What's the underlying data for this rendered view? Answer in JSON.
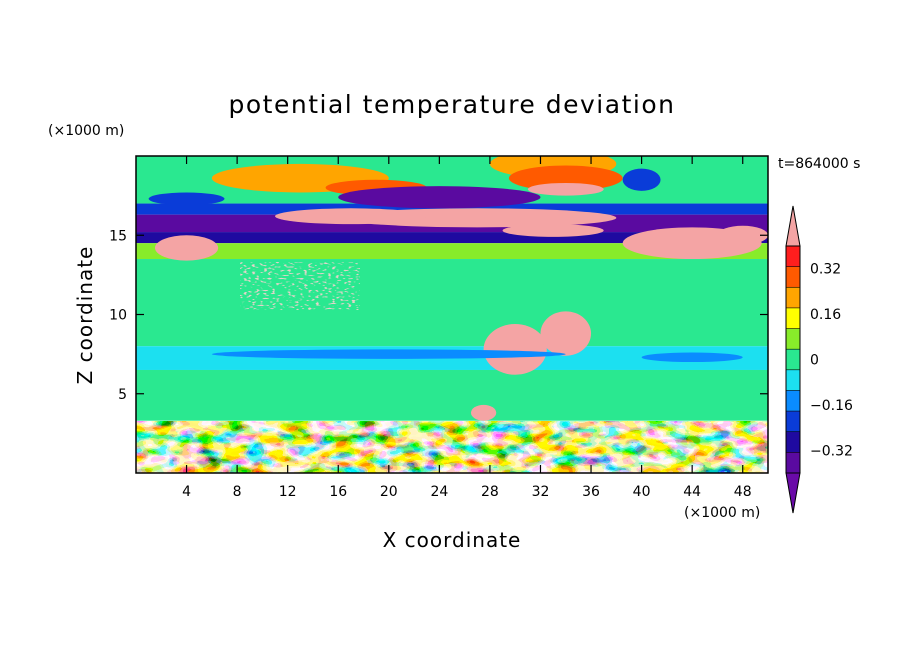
{
  "chart_data": {
    "type": "heatmap",
    "title": "potential temperature deviation",
    "xlabel": "X coordinate",
    "ylabel": "Z coordinate",
    "x_unit": "(×1000 m)",
    "y_unit": "(×1000 m)",
    "time_label": "t=864000 s",
    "xlim": [
      0,
      50
    ],
    "ylim": [
      0,
      20
    ],
    "x_ticks": [
      4,
      8,
      12,
      16,
      20,
      24,
      28,
      32,
      36,
      40,
      44,
      48
    ],
    "y_ticks": [
      5,
      10,
      15
    ],
    "colorbar": {
      "levels": [
        -0.4,
        -0.32,
        -0.24,
        -0.16,
        -0.08,
        0,
        0.08,
        0.16,
        0.24,
        0.32,
        0.4
      ],
      "tick_values": [
        0.32,
        0.16,
        0,
        -0.16,
        -0.32
      ],
      "tick_labels": [
        "0.32",
        "0.16",
        "0",
        "−0.16",
        "−0.32"
      ],
      "over_color": "#f4a4a4",
      "under_color": "#6a0aa8",
      "colors": [
        "#5a0aa0",
        "#1f0aa0",
        "#0a3cd8",
        "#0a8cff",
        "#1ce0f0",
        "#2ae890",
        "#88ec2a",
        "#ffff00",
        "#ffa500",
        "#ff5a00",
        "#ff1e1e"
      ]
    },
    "bands": [
      {
        "z": [
          17,
          20
        ],
        "value": 0.04
      },
      {
        "z": [
          16.3,
          17
        ],
        "value": -0.2
      },
      {
        "z": [
          15.2,
          16.3
        ],
        "value": -0.4
      },
      {
        "z": [
          14.5,
          15.2
        ],
        "value": -0.28
      },
      {
        "z": [
          13.5,
          14.5
        ],
        "value": 0.08
      },
      {
        "z": [
          8,
          13.5
        ],
        "value": 0.02
      },
      {
        "z": [
          6.5,
          8
        ],
        "value": -0.02
      },
      {
        "z": [
          3.3,
          6.5
        ],
        "value": 0.02
      },
      {
        "z": [
          0,
          3.3
        ],
        "value": "turbulent"
      }
    ]
  }
}
